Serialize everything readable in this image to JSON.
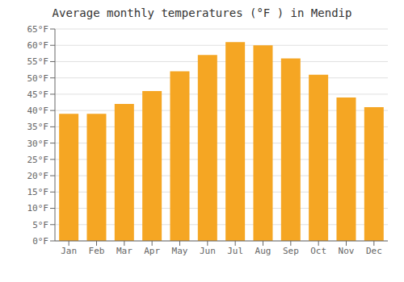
{
  "chart_data": {
    "type": "bar",
    "title": "Average monthly temperatures (°F ) in Mendip",
    "categories": [
      "Jan",
      "Feb",
      "Mar",
      "Apr",
      "May",
      "Jun",
      "Jul",
      "Aug",
      "Sep",
      "Oct",
      "Nov",
      "Dec"
    ],
    "values": [
      39,
      39,
      42,
      46,
      52,
      57,
      61,
      60,
      56,
      51,
      44,
      41
    ],
    "color": "#F5A623",
    "ylim": [
      0,
      65
    ],
    "yticks": [
      {
        "value": 0,
        "label": "0°F"
      },
      {
        "value": 5,
        "label": "5°F"
      },
      {
        "value": 10,
        "label": "10°F"
      },
      {
        "value": 15,
        "label": "15°F"
      },
      {
        "value": 20,
        "label": "20°F"
      },
      {
        "value": 25,
        "label": "25°F"
      },
      {
        "value": 30,
        "label": "30°F"
      },
      {
        "value": 35,
        "label": "35°F"
      },
      {
        "value": 40,
        "label": "40°F"
      },
      {
        "value": 45,
        "label": "45°F"
      },
      {
        "value": 50,
        "label": "50°F"
      },
      {
        "value": 55,
        "label": "55°F"
      },
      {
        "value": 60,
        "label": "60°F"
      },
      {
        "value": 65,
        "label": "65°F"
      }
    ],
    "grid": true
  }
}
